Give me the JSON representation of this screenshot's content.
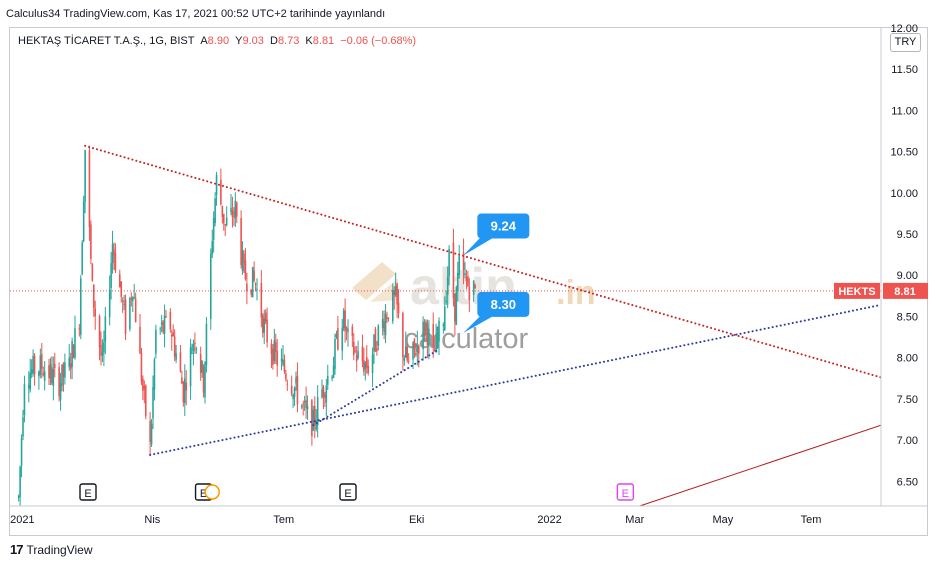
{
  "header": "Calculus34 TradingView.com, Kas 17, 2021 00:52 UTC+2 tarihinde yayınlandı",
  "legend": {
    "name": "HEKTAŞ TİCARET T.A.Ş., 1G, BIST",
    "open_label": "A",
    "open": "8.90",
    "high_label": "Y",
    "high": "9.03",
    "low_label": "D",
    "low": "8.73",
    "close_label": "K",
    "close": "8.81",
    "change": "−0.06 (−0.68%)"
  },
  "currency": "TRY",
  "footer": {
    "logo": "17",
    "text": "TradingView"
  },
  "watermark": {
    "brand": "altin",
    "tld": ".in",
    "sub": "calculator"
  },
  "colors": {
    "up": "#26a69a",
    "down": "#ef5350",
    "price_line": "#ef5350",
    "resistance": "#c62828",
    "support": "#303f9f",
    "callout": "#2196f3",
    "earnings_gray": "#131722",
    "earnings_magenta": "#e040fb",
    "dividend": "#ff9800"
  },
  "chart_data": {
    "type": "candlestick",
    "symbol": "HEKTS",
    "last_price": 8.81,
    "last_price_label": "8.81",
    "ylim": [
      6.2,
      12.0
    ],
    "y_ticks": [
      "6.50",
      "7.00",
      "7.50",
      "8.00",
      "8.50",
      "9.00",
      "9.50",
      "10.00",
      "10.50",
      "11.00",
      "11.50",
      "12.00"
    ],
    "x_ticks": [
      {
        "label": "2021",
        "date": "2021-01-01"
      },
      {
        "label": "Nis",
        "date": "2021-04-01"
      },
      {
        "label": "Tem",
        "date": "2021-07-01"
      },
      {
        "label": "Eki",
        "date": "2021-10-01"
      },
      {
        "label": "2022",
        "date": "2022-01-01"
      },
      {
        "label": "Mar",
        "date": "2022-03-01"
      },
      {
        "label": "May",
        "date": "2022-05-01"
      },
      {
        "label": "Tem",
        "date": "2022-07-01"
      }
    ],
    "x_range": [
      "2020-12-29",
      "2022-08-24"
    ],
    "price_path": [
      {
        "date": "2021-01-04",
        "price": 6.3
      },
      {
        "date": "2021-01-08",
        "price": 7.8
      },
      {
        "date": "2021-01-20",
        "price": 7.9
      },
      {
        "date": "2021-02-01",
        "price": 7.7
      },
      {
        "date": "2021-02-08",
        "price": 7.9
      },
      {
        "date": "2021-02-15",
        "price": 8.5
      },
      {
        "date": "2021-02-19",
        "price": 10.55
      },
      {
        "date": "2021-02-24",
        "price": 8.8
      },
      {
        "date": "2021-03-03",
        "price": 7.9
      },
      {
        "date": "2021-03-10",
        "price": 9.4
      },
      {
        "date": "2021-03-19",
        "price": 8.4
      },
      {
        "date": "2021-03-24",
        "price": 8.9
      },
      {
        "date": "2021-03-31",
        "price": 7.6
      },
      {
        "date": "2021-04-05",
        "price": 6.9
      },
      {
        "date": "2021-04-09",
        "price": 8.3
      },
      {
        "date": "2021-04-19",
        "price": 8.4
      },
      {
        "date": "2021-04-28",
        "price": 7.6
      },
      {
        "date": "2021-05-06",
        "price": 8.3
      },
      {
        "date": "2021-05-12",
        "price": 7.7
      },
      {
        "date": "2021-05-18",
        "price": 9.5
      },
      {
        "date": "2021-05-21",
        "price": 10.15
      },
      {
        "date": "2021-05-27",
        "price": 9.6
      },
      {
        "date": "2021-06-03",
        "price": 9.8
      },
      {
        "date": "2021-06-09",
        "price": 9.0
      },
      {
        "date": "2021-06-17",
        "price": 8.9
      },
      {
        "date": "2021-06-24",
        "price": 8.3
      },
      {
        "date": "2021-07-01",
        "price": 8.0
      },
      {
        "date": "2021-07-09",
        "price": 7.8
      },
      {
        "date": "2021-07-15",
        "price": 7.6
      },
      {
        "date": "2021-07-22",
        "price": 7.3
      },
      {
        "date": "2021-07-27",
        "price": 7.2
      },
      {
        "date": "2021-08-02",
        "price": 7.6
      },
      {
        "date": "2021-08-09",
        "price": 7.9
      },
      {
        "date": "2021-08-16",
        "price": 8.5
      },
      {
        "date": "2021-08-20",
        "price": 8.2
      },
      {
        "date": "2021-08-27",
        "price": 8.0
      },
      {
        "date": "2021-09-03",
        "price": 7.9
      },
      {
        "date": "2021-09-10",
        "price": 8.3
      },
      {
        "date": "2021-09-17",
        "price": 8.6
      },
      {
        "date": "2021-09-22",
        "price": 8.7
      },
      {
        "date": "2021-09-27",
        "price": 8.1
      },
      {
        "date": "2021-10-01",
        "price": 7.9
      },
      {
        "date": "2021-10-08",
        "price": 8.2
      },
      {
        "date": "2021-10-13",
        "price": 8.4
      },
      {
        "date": "2021-10-18",
        "price": 8.0
      },
      {
        "date": "2021-10-25",
        "price": 8.5
      },
      {
        "date": "2021-10-29",
        "price": 9.2
      },
      {
        "date": "2021-11-02",
        "price": 8.6
      },
      {
        "date": "2021-11-05",
        "price": 9.1
      },
      {
        "date": "2021-11-10",
        "price": 8.9
      },
      {
        "date": "2021-11-16",
        "price": 8.81
      }
    ],
    "trendlines": [
      {
        "name": "resistance",
        "style": "dotted",
        "points": [
          {
            "date": "2021-02-19",
            "price": 10.57
          },
          {
            "date": "2022-08-24",
            "price": 7.76
          }
        ]
      },
      {
        "name": "support-long",
        "style": "dotted",
        "points": [
          {
            "date": "2021-04-05",
            "price": 6.82
          },
          {
            "date": "2022-08-24",
            "price": 8.64
          }
        ]
      },
      {
        "name": "support-short",
        "style": "dotted",
        "points": [
          {
            "date": "2021-07-27",
            "price": 7.18
          },
          {
            "date": "2021-10-22",
            "price": 8.1
          }
        ]
      },
      {
        "name": "trend-solid",
        "style": "solid",
        "points": [
          {
            "date": "2022-03-10",
            "price": 6.2
          },
          {
            "date": "2022-08-24",
            "price": 7.18
          }
        ]
      }
    ],
    "callouts": [
      {
        "label": "9.24",
        "date": "2021-11-03",
        "price": 9.24
      },
      {
        "label": "8.30",
        "date": "2021-11-03",
        "price": 8.3
      }
    ],
    "events": [
      {
        "type": "earnings",
        "label": "E",
        "date": "2021-02-21",
        "color": "gray"
      },
      {
        "type": "earnings",
        "label": "E",
        "date": "2021-05-12",
        "color": "gray"
      },
      {
        "type": "dividend",
        "label": "",
        "date": "2021-05-18",
        "color": "orange"
      },
      {
        "type": "earnings",
        "label": "E",
        "date": "2021-08-20",
        "color": "gray"
      },
      {
        "type": "earnings",
        "label": "E",
        "date": "2022-02-28",
        "color": "magenta"
      }
    ]
  }
}
